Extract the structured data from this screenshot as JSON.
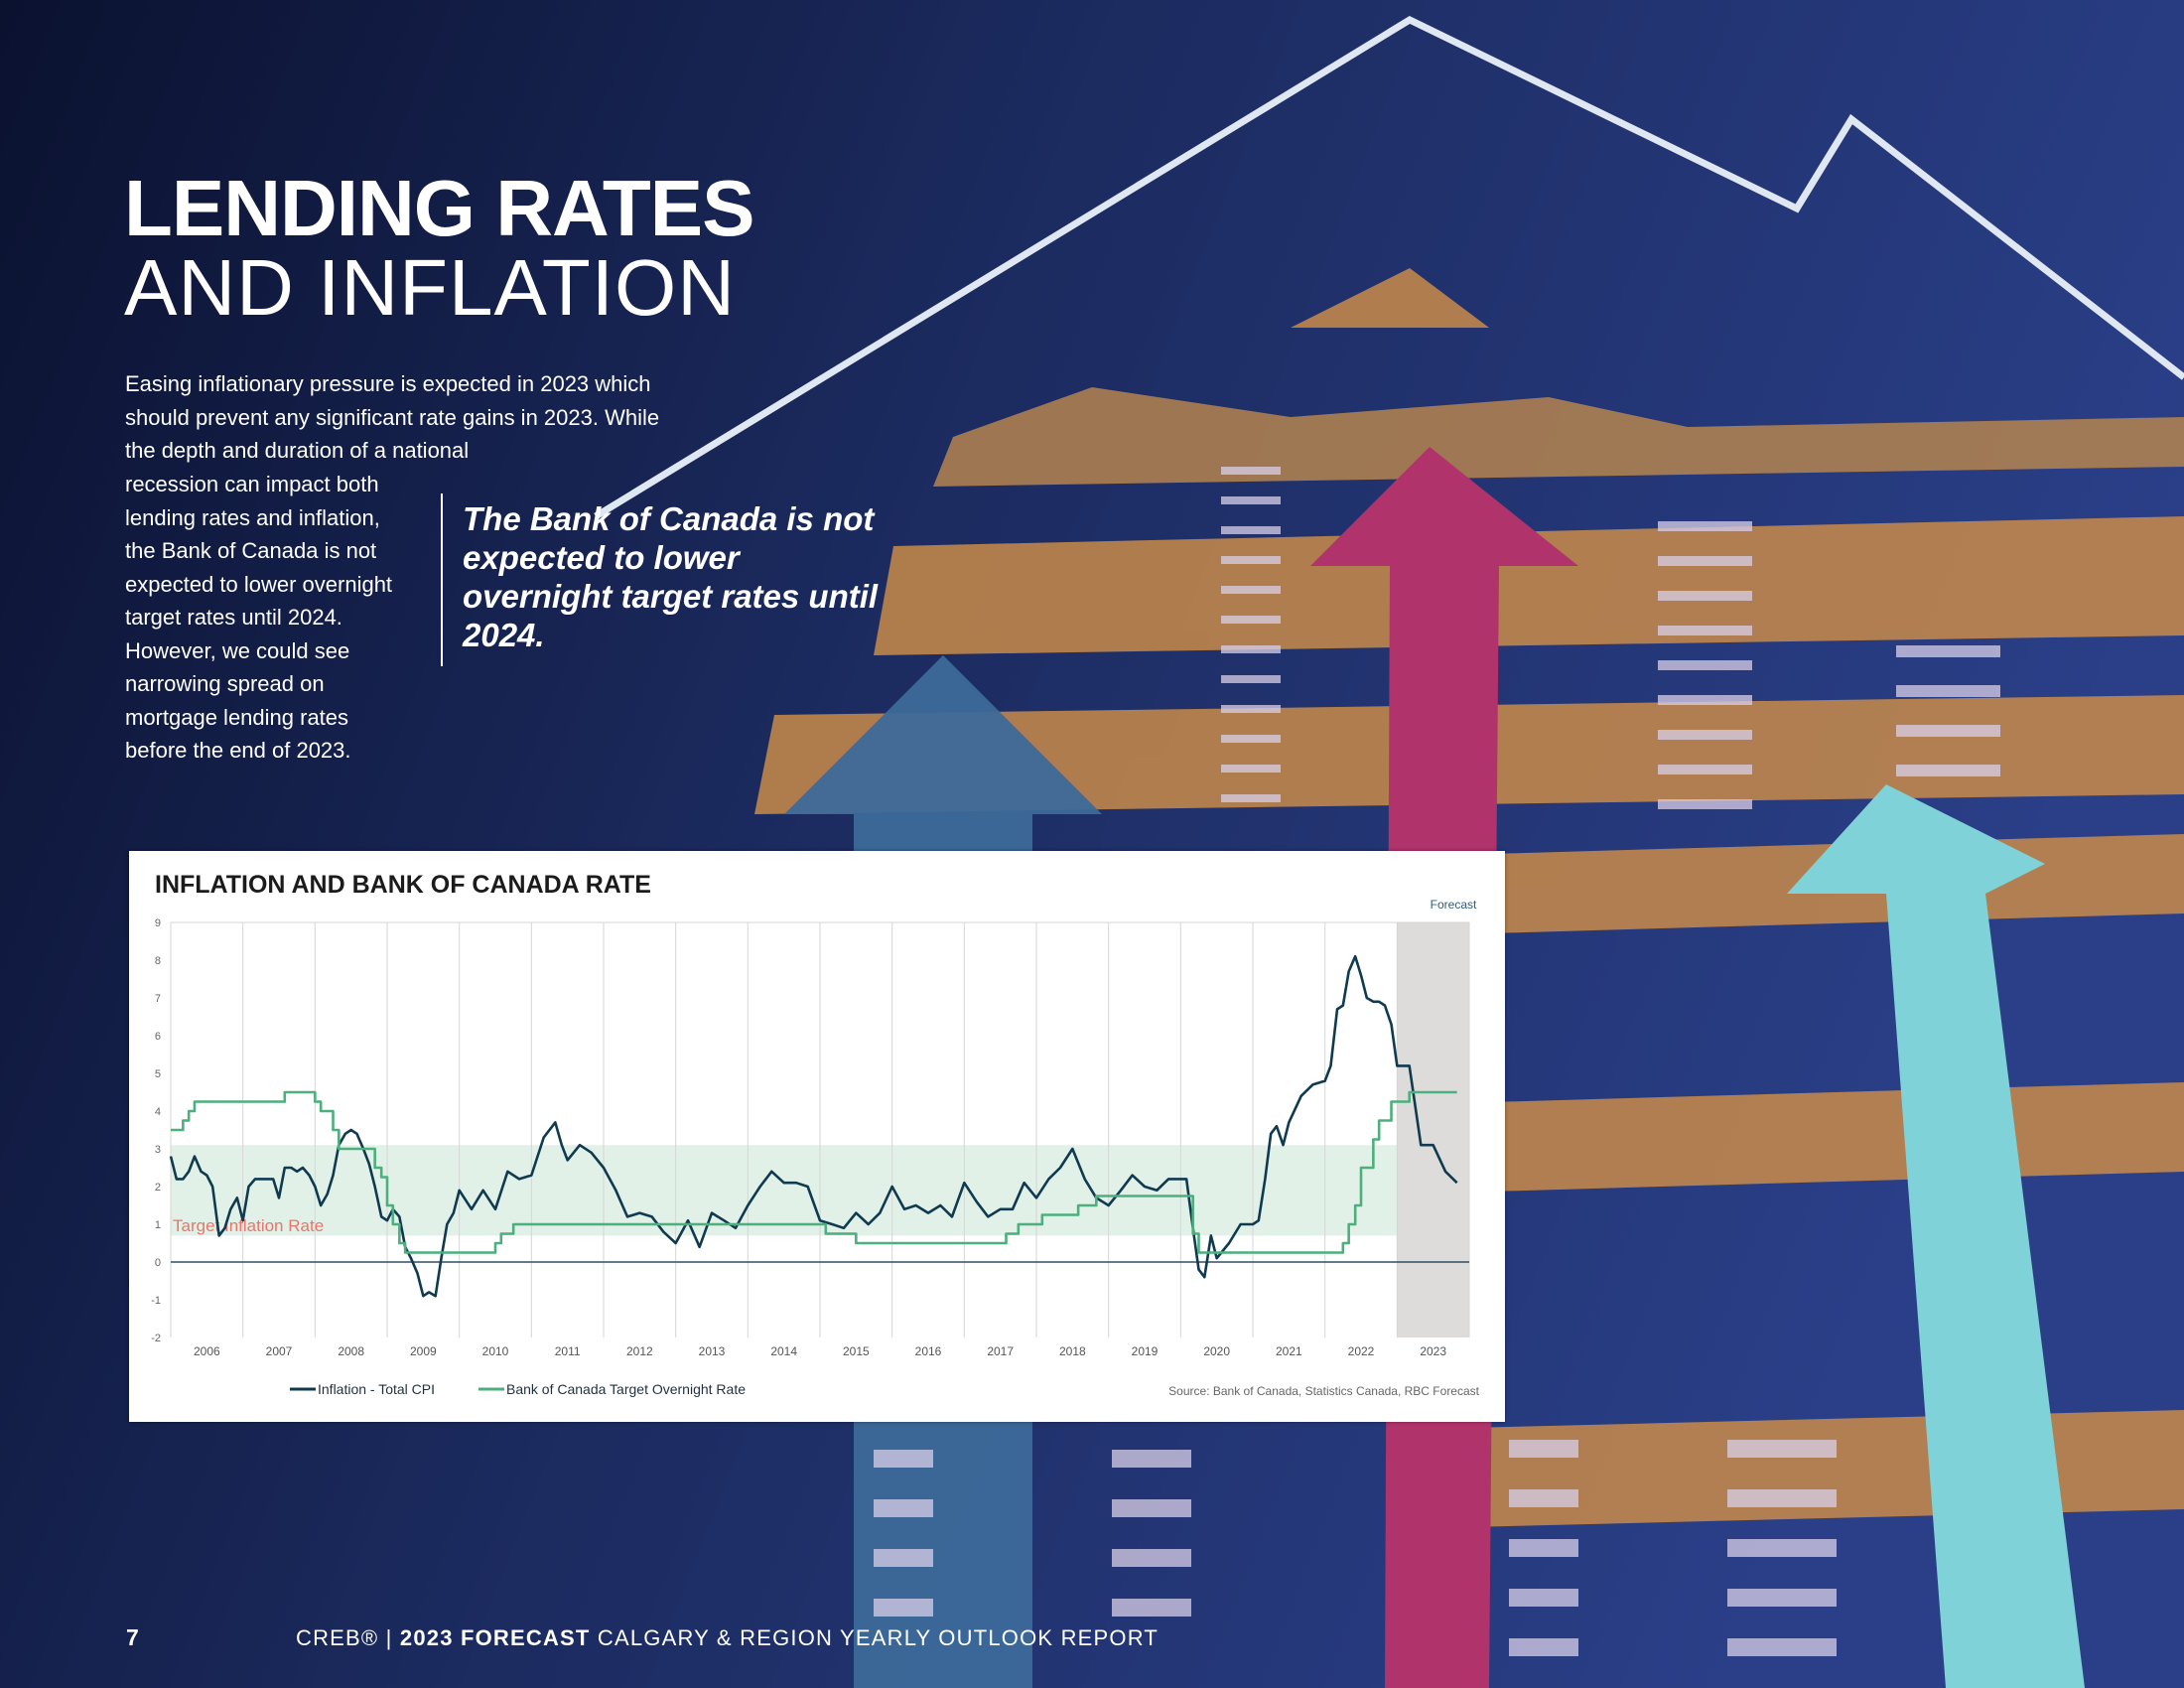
{
  "page": {
    "title_line1": "LENDING RATES",
    "title_line2": "AND INFLATION",
    "body_top": "Easing inflationary pressure is expected in 2023 which should prevent any significant rate gains in 2023.  While the depth and duration of a national",
    "body_left": "recession can impact both lending rates and inflation, the Bank of Canada is not expected to lower overnight target rates until 2024. However, we could see narrowing spread on mortgage lending rates before the end of 2023.",
    "quote": "The Bank of Canada is not expected to lower overnight target rates until 2024.",
    "page_number": "7",
    "footer_brand": "CREB®",
    "footer_sep": "|",
    "footer_bold": "2023 FORECAST",
    "footer_rest": "CALGARY & REGION YEARLY OUTLOOK REPORT"
  },
  "colors": {
    "cpi": "#0f3a4f",
    "boc": "#4caf7d",
    "band": "#e2f1e8",
    "forecast_shade": "#dedcdb",
    "target_label": "#e8766a"
  },
  "chart_data": {
    "type": "line",
    "title": "INFLATION AND BANK OF CANADA RATE",
    "ylim": [
      -2,
      9
    ],
    "yticks": [
      "-2",
      "-1",
      "0",
      "1",
      "2",
      "3",
      "4",
      "5",
      "6",
      "7",
      "8",
      "9"
    ],
    "xlim": [
      2006,
      2024
    ],
    "xticks": [
      "2006",
      "2007",
      "2008",
      "2009",
      "2010",
      "2011",
      "2012",
      "2013",
      "2014",
      "2015",
      "2016",
      "2017",
      "2018",
      "2019",
      "2020",
      "2021",
      "2022",
      "2023"
    ],
    "forecast_label": "Forecast",
    "forecast_start": 2023.0,
    "target_band": [
      0.7,
      3.1
    ],
    "target_band_label": "Target Inflation Rate",
    "grid": "vertical",
    "legend_position": "bottom-left",
    "source": "Source: Bank of Canada, Statistics Canada, RBC Forecast",
    "series": [
      {
        "name": "Inflation - Total CPI",
        "x": [
          2006.0,
          2006.08,
          2006.17,
          2006.25,
          2006.33,
          2006.42,
          2006.5,
          2006.58,
          2006.67,
          2006.75,
          2006.83,
          2006.92,
          2007.0,
          2007.08,
          2007.17,
          2007.25,
          2007.33,
          2007.42,
          2007.5,
          2007.58,
          2007.67,
          2007.75,
          2007.83,
          2007.92,
          2008.0,
          2008.08,
          2008.17,
          2008.25,
          2008.33,
          2008.42,
          2008.5,
          2008.58,
          2008.67,
          2008.75,
          2008.83,
          2008.92,
          2009.0,
          2009.08,
          2009.17,
          2009.25,
          2009.33,
          2009.42,
          2009.5,
          2009.58,
          2009.67,
          2009.75,
          2009.83,
          2009.92,
          2010.0,
          2010.17,
          2010.33,
          2010.5,
          2010.67,
          2010.83,
          2011.0,
          2011.17,
          2011.33,
          2011.42,
          2011.5,
          2011.67,
          2011.83,
          2012.0,
          2012.17,
          2012.33,
          2012.5,
          2012.67,
          2012.83,
          2013.0,
          2013.17,
          2013.33,
          2013.5,
          2013.67,
          2013.83,
          2014.0,
          2014.17,
          2014.33,
          2014.5,
          2014.67,
          2014.83,
          2015.0,
          2015.17,
          2015.33,
          2015.5,
          2015.67,
          2015.83,
          2016.0,
          2016.17,
          2016.33,
          2016.5,
          2016.67,
          2016.83,
          2017.0,
          2017.17,
          2017.33,
          2017.5,
          2017.67,
          2017.83,
          2018.0,
          2018.17,
          2018.33,
          2018.5,
          2018.67,
          2018.83,
          2019.0,
          2019.17,
          2019.33,
          2019.5,
          2019.67,
          2019.83,
          2020.0,
          2020.08,
          2020.17,
          2020.25,
          2020.33,
          2020.42,
          2020.5,
          2020.67,
          2020.83,
          2021.0,
          2021.08,
          2021.17,
          2021.25,
          2021.33,
          2021.42,
          2021.5,
          2021.67,
          2021.83,
          2022.0,
          2022.08,
          2022.17,
          2022.25,
          2022.33,
          2022.42,
          2022.5,
          2022.58,
          2022.67,
          2022.75,
          2022.83,
          2022.92,
          2023.0,
          2023.17,
          2023.33,
          2023.5,
          2023.67,
          2023.83
        ],
        "values": [
          2.8,
          2.2,
          2.2,
          2.4,
          2.8,
          2.4,
          2.3,
          2.0,
          0.7,
          0.9,
          1.4,
          1.7,
          1.1,
          2.0,
          2.2,
          2.2,
          2.2,
          2.2,
          1.7,
          2.5,
          2.5,
          2.4,
          2.5,
          2.3,
          2.0,
          1.5,
          1.8,
          2.3,
          3.1,
          3.4,
          3.5,
          3.4,
          3.0,
          2.6,
          2.0,
          1.2,
          1.1,
          1.4,
          1.2,
          0.4,
          0.1,
          -0.3,
          -0.9,
          -0.8,
          -0.9,
          0.1,
          1.0,
          1.3,
          1.9,
          1.4,
          1.9,
          1.4,
          2.4,
          2.2,
          2.3,
          3.3,
          3.7,
          3.1,
          2.7,
          3.1,
          2.9,
          2.5,
          1.9,
          1.2,
          1.3,
          1.2,
          0.8,
          0.5,
          1.1,
          0.4,
          1.3,
          1.1,
          0.9,
          1.5,
          2.0,
          2.4,
          2.1,
          2.1,
          2.0,
          1.1,
          1.0,
          0.9,
          1.3,
          1.0,
          1.3,
          2.0,
          1.4,
          1.5,
          1.3,
          1.5,
          1.2,
          2.1,
          1.6,
          1.2,
          1.4,
          1.4,
          2.1,
          1.7,
          2.2,
          2.5,
          3.0,
          2.2,
          1.7,
          1.5,
          1.9,
          2.3,
          2.0,
          1.9,
          2.2,
          2.2,
          2.2,
          0.9,
          -0.2,
          -0.4,
          0.7,
          0.1,
          0.5,
          1.0,
          1.0,
          1.1,
          2.2,
          3.4,
          3.6,
          3.1,
          3.7,
          4.4,
          4.7,
          4.8,
          5.2,
          6.7,
          6.8,
          7.7,
          8.1,
          7.6,
          7.0,
          6.9,
          6.9,
          6.8,
          6.3,
          5.2,
          5.2,
          3.1,
          3.1,
          2.4,
          2.1
        ]
      },
      {
        "name": "Bank of Canada Target Overnight Rate",
        "x": [
          2006.0,
          2006.08,
          2006.17,
          2006.25,
          2006.33,
          2006.42,
          2006.5,
          2007.5,
          2007.58,
          2007.9,
          2008.0,
          2008.08,
          2008.17,
          2008.25,
          2008.33,
          2008.75,
          2008.83,
          2008.92,
          2009.0,
          2009.08,
          2009.17,
          2009.25,
          2009.33,
          2010.42,
          2010.5,
          2010.58,
          2010.67,
          2010.75,
          2010.83,
          2015.0,
          2015.08,
          2015.42,
          2015.5,
          2017.5,
          2017.58,
          2017.75,
          2018.0,
          2018.08,
          2018.5,
          2018.58,
          2018.83,
          2018.92,
          2020.0,
          2020.17,
          2020.25,
          2022.17,
          2022.25,
          2022.33,
          2022.42,
          2022.5,
          2022.58,
          2022.67,
          2022.75,
          2022.83,
          2022.92,
          2023.0,
          2023.17,
          2023.83
        ],
        "values": [
          3.5,
          3.5,
          3.75,
          4.0,
          4.25,
          4.25,
          4.25,
          4.25,
          4.5,
          4.5,
          4.25,
          4.0,
          4.0,
          3.5,
          3.0,
          3.0,
          2.5,
          2.25,
          1.5,
          1.0,
          0.5,
          0.25,
          0.25,
          0.25,
          0.5,
          0.75,
          0.75,
          1.0,
          1.0,
          1.0,
          0.75,
          0.75,
          0.5,
          0.5,
          0.75,
          1.0,
          1.0,
          1.25,
          1.25,
          1.5,
          1.75,
          1.75,
          1.75,
          0.75,
          0.25,
          0.25,
          0.5,
          1.0,
          1.5,
          2.5,
          2.5,
          3.25,
          3.75,
          3.75,
          4.25,
          4.25,
          4.5,
          4.5
        ]
      }
    ]
  }
}
